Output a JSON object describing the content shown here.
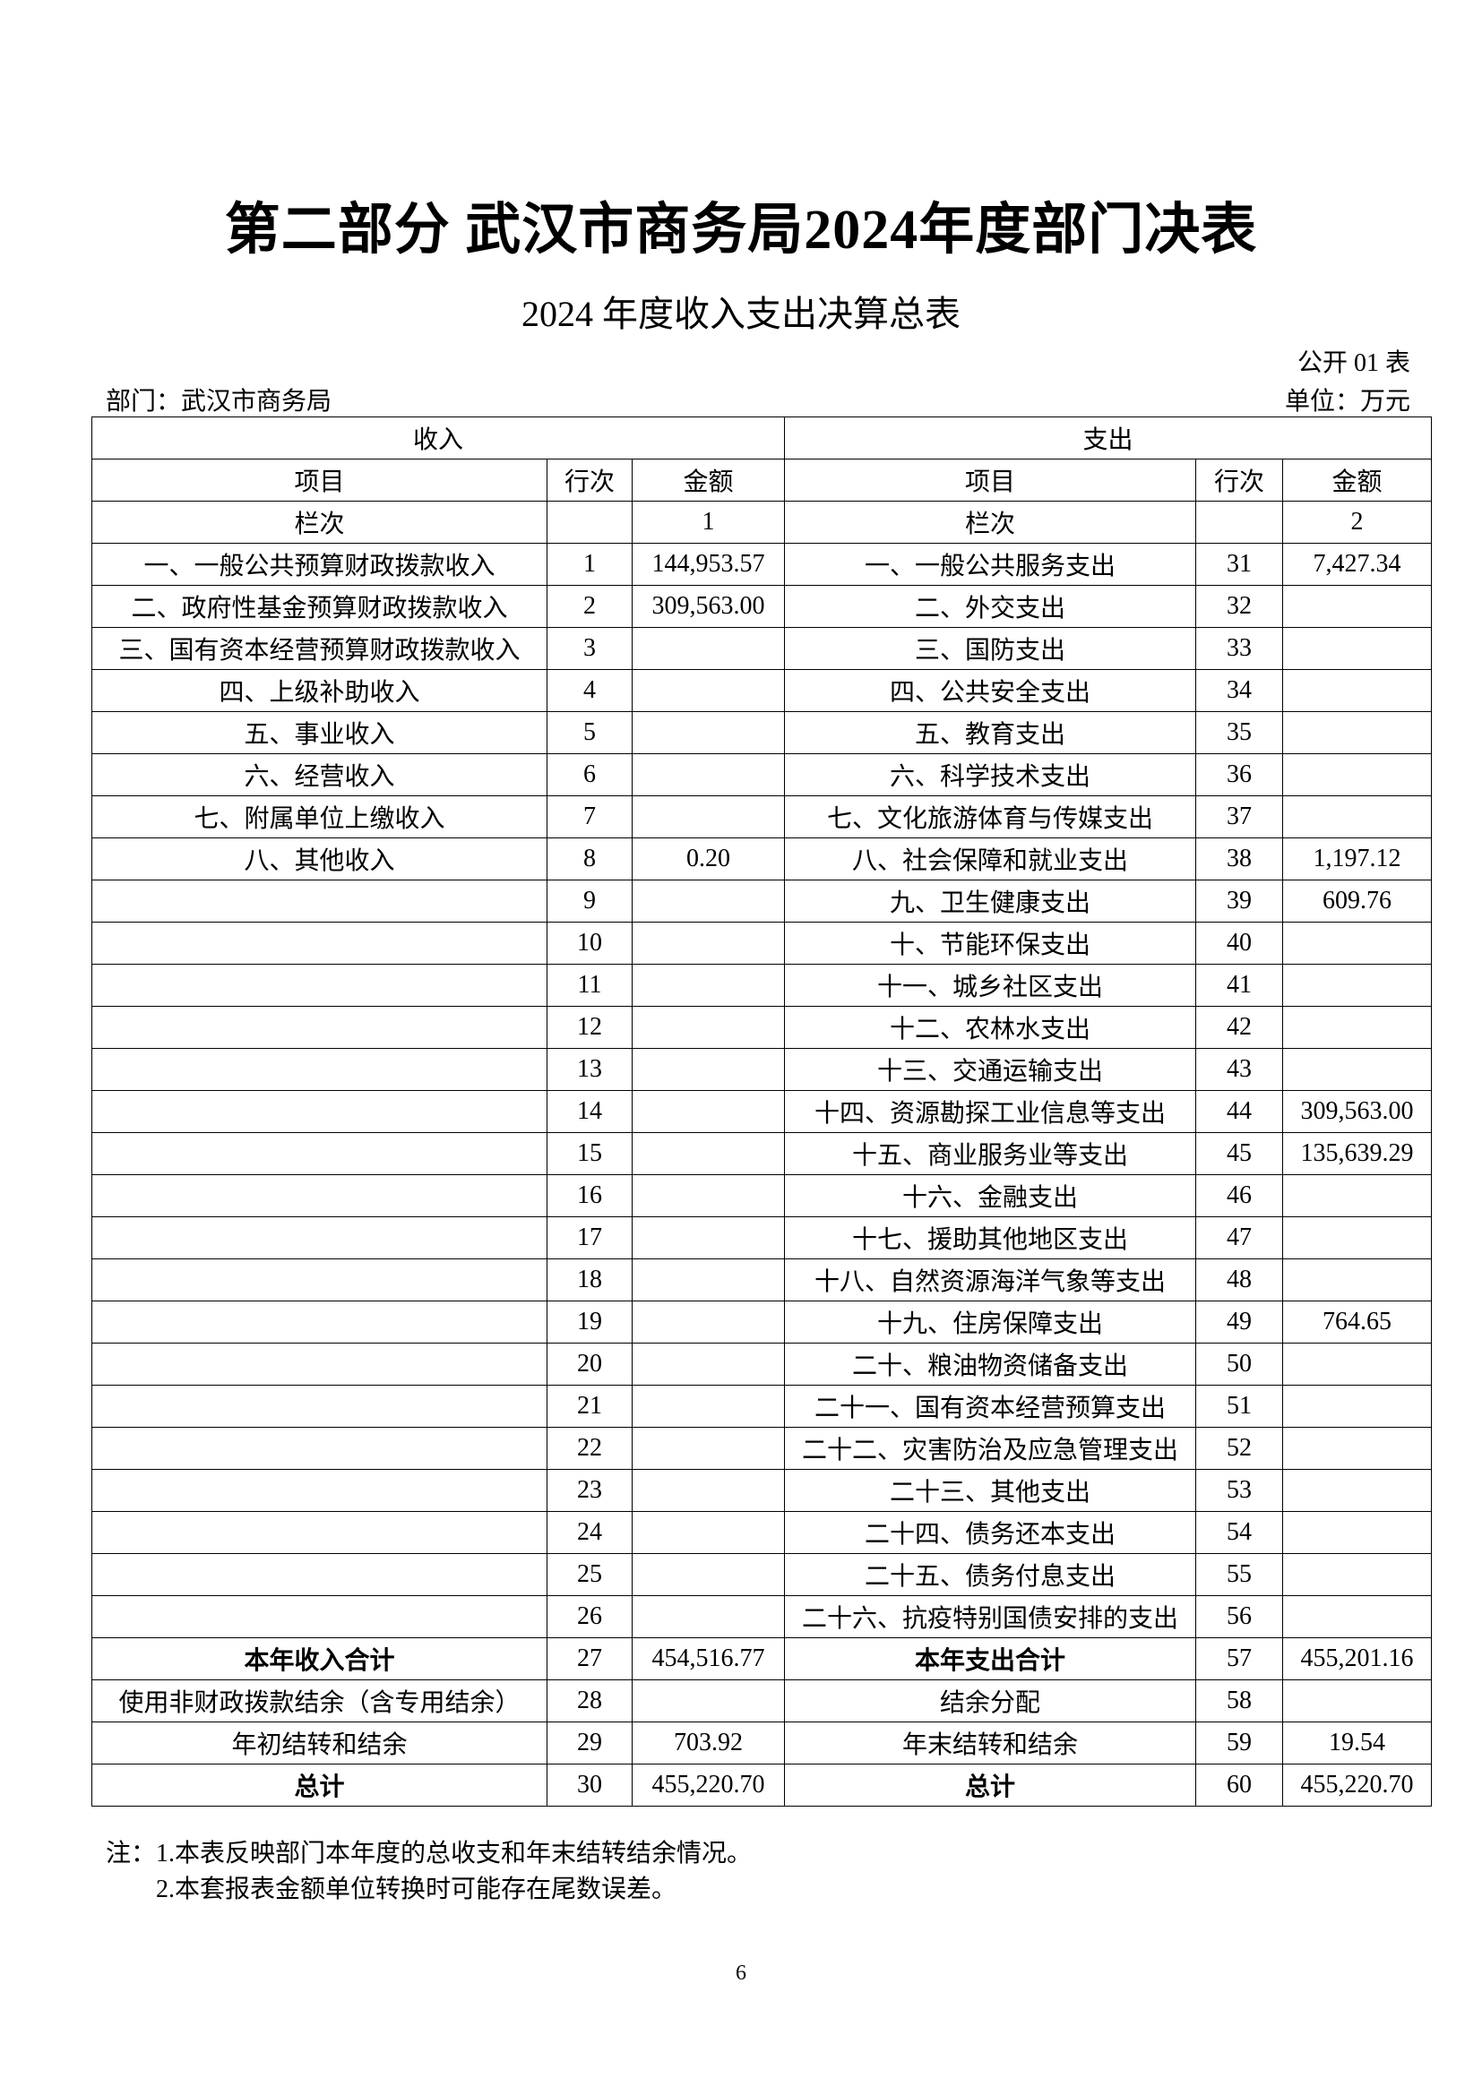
{
  "title": "第二部分  武汉市商务局2024年度部门决表",
  "subtitle": "2024 年度收入支出决算总表",
  "form_no": "公开 01 表",
  "department": "部门：武汉市商务局",
  "unit": "单位：万元",
  "table": {
    "income_header": "收入",
    "expense_header": "支出",
    "columns": [
      "项目",
      "行次",
      "金额",
      "项目",
      "行次",
      "金额"
    ],
    "column_index_row": [
      "栏次",
      "",
      "1",
      "栏次",
      "",
      "2"
    ],
    "rows": [
      {
        "in_item": "一、一般公共预算财政拨款收入",
        "in_line": "1",
        "in_amount": "144,953.57",
        "out_item": "一、一般公共服务支出",
        "out_line": "31",
        "out_amount": "7,427.34"
      },
      {
        "in_item": "二、政府性基金预算财政拨款收入",
        "in_line": "2",
        "in_amount": "309,563.00",
        "out_item": "二、外交支出",
        "out_line": "32",
        "out_amount": ""
      },
      {
        "in_item": "三、国有资本经营预算财政拨款收入",
        "in_line": "3",
        "in_amount": "",
        "out_item": "三、国防支出",
        "out_line": "33",
        "out_amount": ""
      },
      {
        "in_item": "四、上级补助收入",
        "in_line": "4",
        "in_amount": "",
        "out_item": "四、公共安全支出",
        "out_line": "34",
        "out_amount": ""
      },
      {
        "in_item": "五、事业收入",
        "in_line": "5",
        "in_amount": "",
        "out_item": "五、教育支出",
        "out_line": "35",
        "out_amount": ""
      },
      {
        "in_item": "六、经营收入",
        "in_line": "6",
        "in_amount": "",
        "out_item": "六、科学技术支出",
        "out_line": "36",
        "out_amount": ""
      },
      {
        "in_item": "七、附属单位上缴收入",
        "in_line": "7",
        "in_amount": "",
        "out_item": "七、文化旅游体育与传媒支出",
        "out_line": "37",
        "out_amount": ""
      },
      {
        "in_item": "八、其他收入",
        "in_line": "8",
        "in_amount": "0.20",
        "out_item": "八、社会保障和就业支出",
        "out_line": "38",
        "out_amount": "1,197.12"
      },
      {
        "in_item": "",
        "in_line": "9",
        "in_amount": "",
        "out_item": "九、卫生健康支出",
        "out_line": "39",
        "out_amount": "609.76"
      },
      {
        "in_item": "",
        "in_line": "10",
        "in_amount": "",
        "out_item": "十、节能环保支出",
        "out_line": "40",
        "out_amount": ""
      },
      {
        "in_item": "",
        "in_line": "11",
        "in_amount": "",
        "out_item": "十一、城乡社区支出",
        "out_line": "41",
        "out_amount": ""
      },
      {
        "in_item": "",
        "in_line": "12",
        "in_amount": "",
        "out_item": "十二、农林水支出",
        "out_line": "42",
        "out_amount": ""
      },
      {
        "in_item": "",
        "in_line": "13",
        "in_amount": "",
        "out_item": "十三、交通运输支出",
        "out_line": "43",
        "out_amount": ""
      },
      {
        "in_item": "",
        "in_line": "14",
        "in_amount": "",
        "out_item": "十四、资源勘探工业信息等支出",
        "out_line": "44",
        "out_amount": "309,563.00"
      },
      {
        "in_item": "",
        "in_line": "15",
        "in_amount": "",
        "out_item": "十五、商业服务业等支出",
        "out_line": "45",
        "out_amount": "135,639.29"
      },
      {
        "in_item": "",
        "in_line": "16",
        "in_amount": "",
        "out_item": "十六、金融支出",
        "out_line": "46",
        "out_amount": ""
      },
      {
        "in_item": "",
        "in_line": "17",
        "in_amount": "",
        "out_item": "十七、援助其他地区支出",
        "out_line": "47",
        "out_amount": ""
      },
      {
        "in_item": "",
        "in_line": "18",
        "in_amount": "",
        "out_item": "十八、自然资源海洋气象等支出",
        "out_line": "48",
        "out_amount": ""
      },
      {
        "in_item": "",
        "in_line": "19",
        "in_amount": "",
        "out_item": "十九、住房保障支出",
        "out_line": "49",
        "out_amount": "764.65"
      },
      {
        "in_item": "",
        "in_line": "20",
        "in_amount": "",
        "out_item": "二十、粮油物资储备支出",
        "out_line": "50",
        "out_amount": ""
      },
      {
        "in_item": "",
        "in_line": "21",
        "in_amount": "",
        "out_item": "二十一、国有资本经营预算支出",
        "out_line": "51",
        "out_amount": ""
      },
      {
        "in_item": "",
        "in_line": "22",
        "in_amount": "",
        "out_item": "二十二、灾害防治及应急管理支出",
        "out_line": "52",
        "out_amount": ""
      },
      {
        "in_item": "",
        "in_line": "23",
        "in_amount": "",
        "out_item": "二十三、其他支出",
        "out_line": "53",
        "out_amount": ""
      },
      {
        "in_item": "",
        "in_line": "24",
        "in_amount": "",
        "out_item": "二十四、债务还本支出",
        "out_line": "54",
        "out_amount": ""
      },
      {
        "in_item": "",
        "in_line": "25",
        "in_amount": "",
        "out_item": "二十五、债务付息支出",
        "out_line": "55",
        "out_amount": ""
      },
      {
        "in_item": "",
        "in_line": "26",
        "in_amount": "",
        "out_item": "二十六、抗疫特别国债安排的支出",
        "out_line": "56",
        "out_amount": ""
      },
      {
        "in_item": "本年收入合计",
        "in_line": "27",
        "in_amount": "454,516.77",
        "out_item": "本年支出合计",
        "out_line": "57",
        "out_amount": "455,201.16",
        "bold": true
      },
      {
        "in_item": "使用非财政拨款结余（含专用结余）",
        "in_line": "28",
        "in_amount": "",
        "out_item": "结余分配",
        "out_line": "58",
        "out_amount": ""
      },
      {
        "in_item": "年初结转和结余",
        "in_line": "29",
        "in_amount": "703.92",
        "out_item": "年末结转和结余",
        "out_line": "59",
        "out_amount": "19.54"
      },
      {
        "in_item": "总计",
        "in_line": "30",
        "in_amount": "455,220.70",
        "out_item": "总计",
        "out_line": "60",
        "out_amount": "455,220.70",
        "bold": true
      }
    ]
  },
  "notes": [
    "注：1.本表反映部门本年度的总收支和年末结转结余情况。",
    "2.本套报表金额单位转换时可能存在尾数误差。"
  ],
  "page_number": "6"
}
